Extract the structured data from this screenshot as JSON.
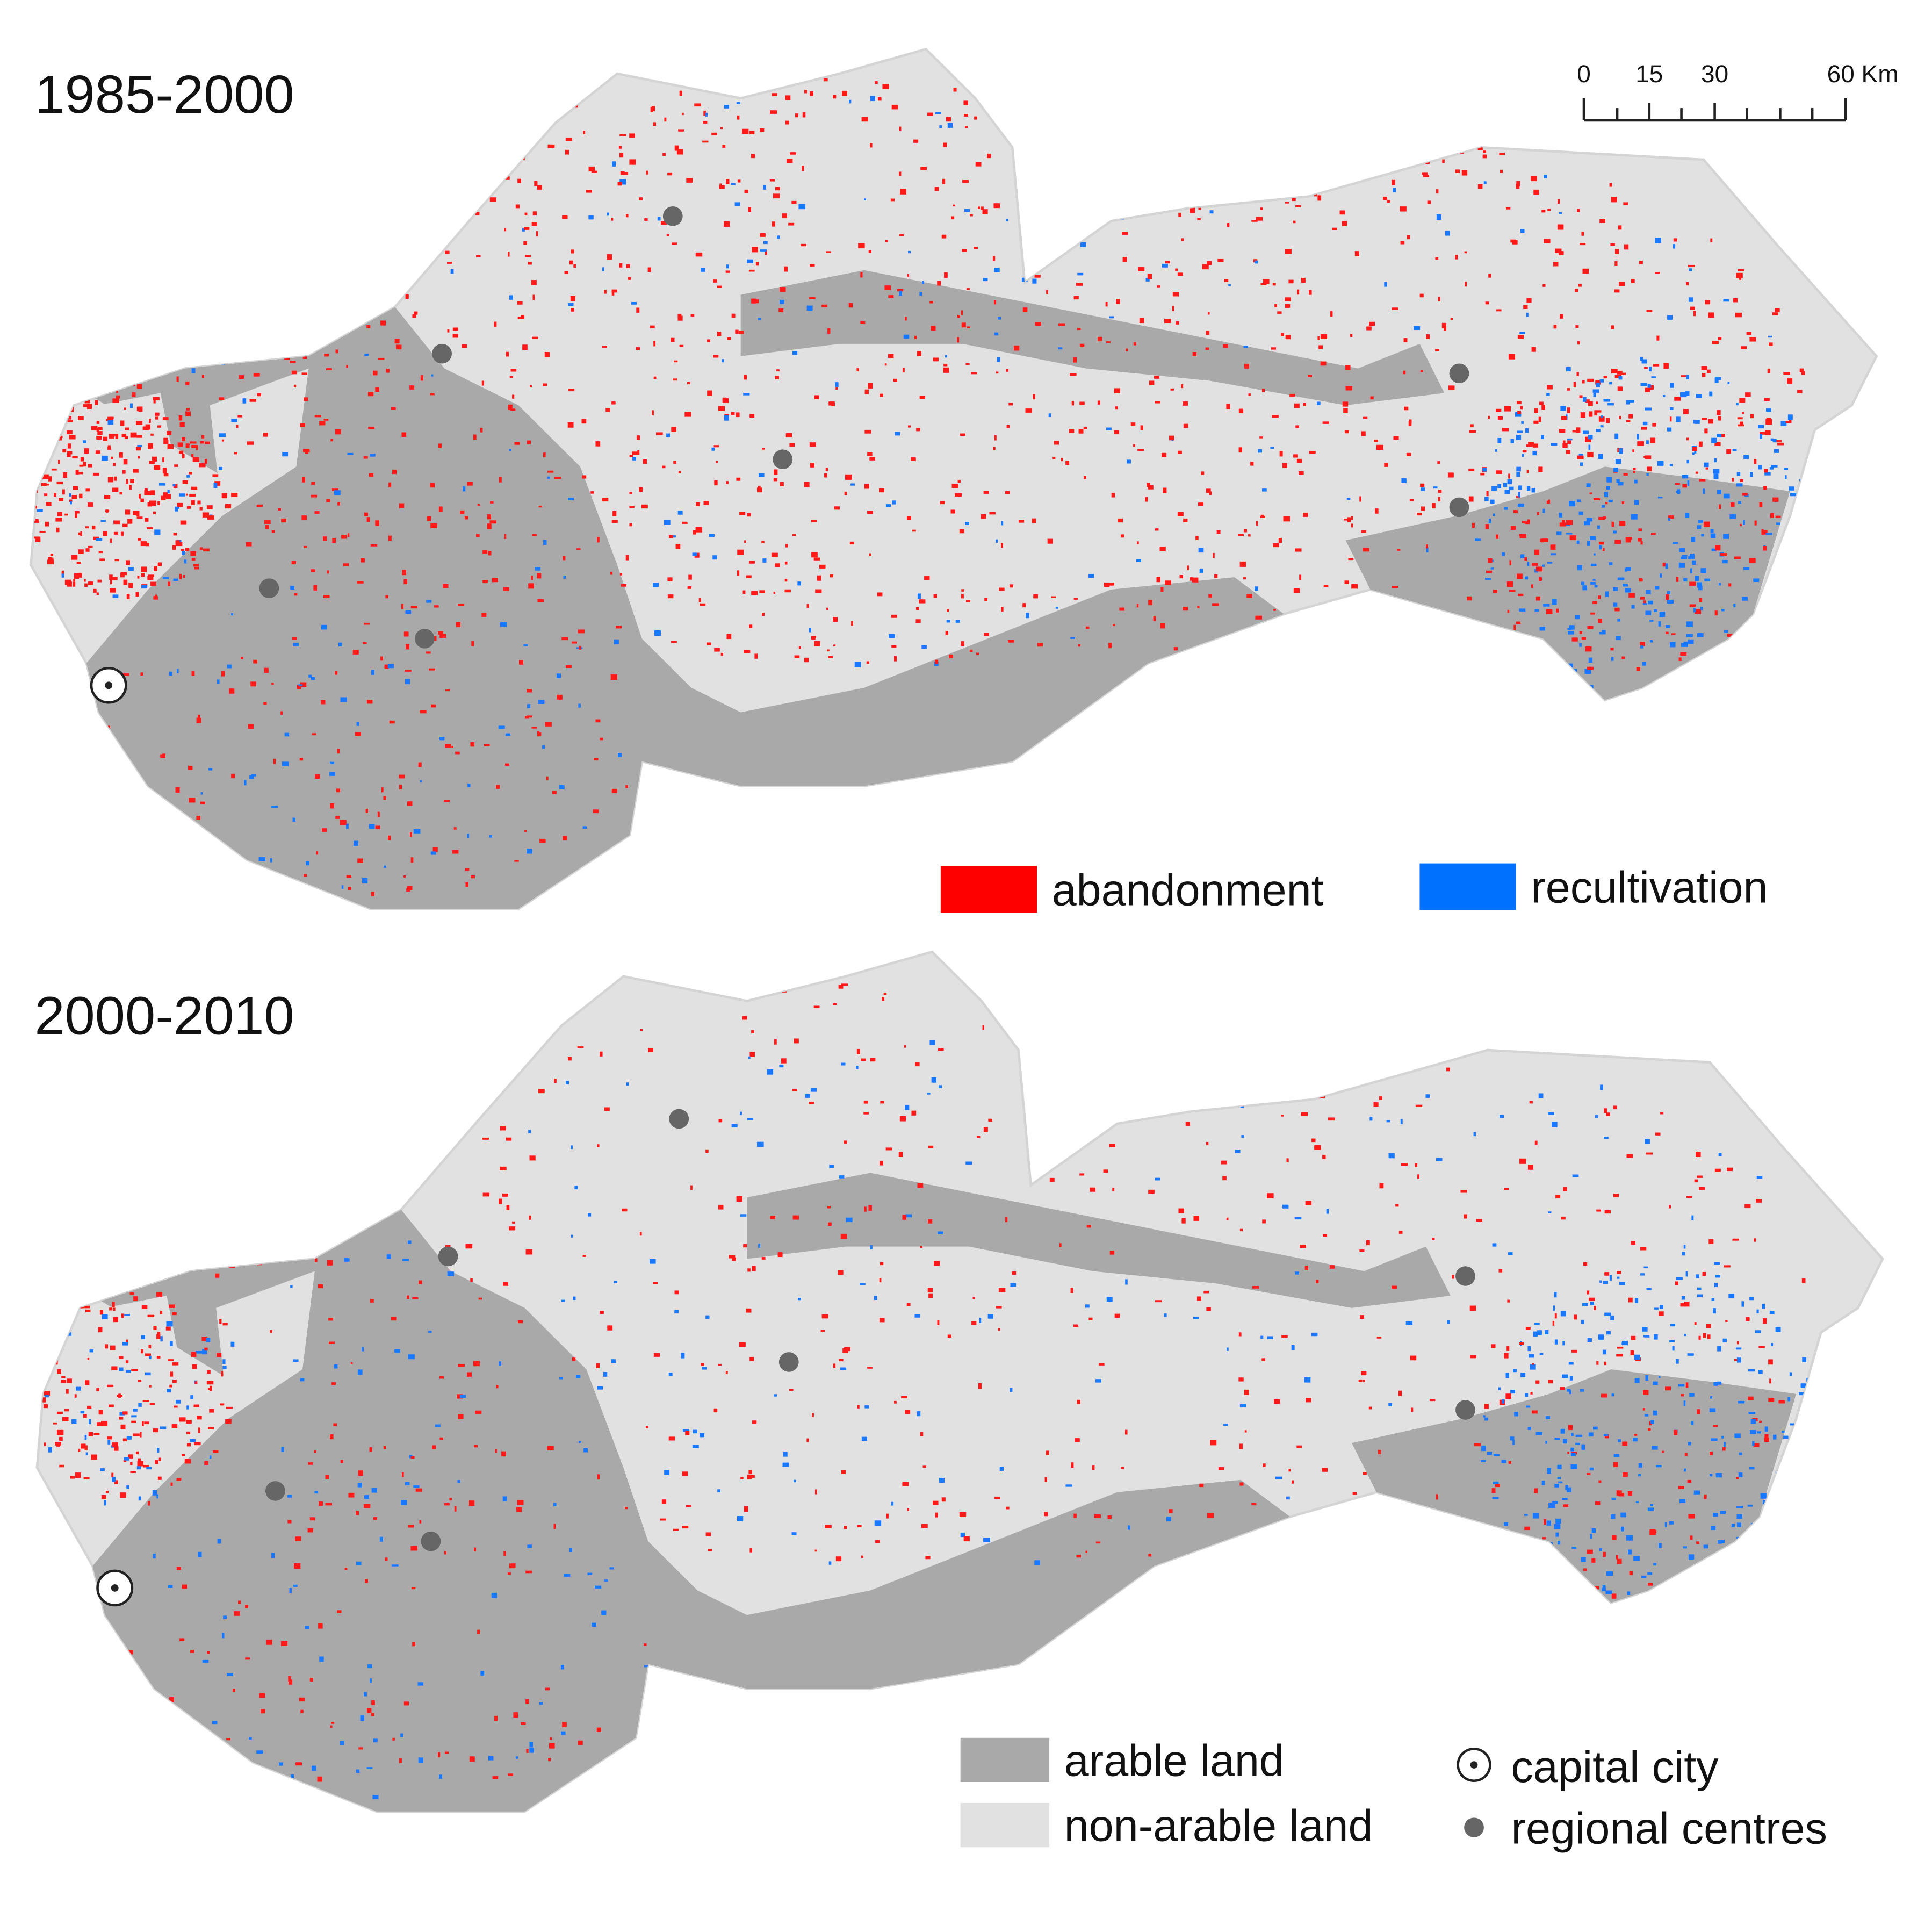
{
  "panels": [
    {
      "title": "1985-2000"
    },
    {
      "title": "2000-2010"
    }
  ],
  "scale_bar": {
    "labels": [
      "0",
      "15",
      "30",
      "60 Km"
    ]
  },
  "legend": {
    "change": [
      "abandonment",
      "recultivation"
    ],
    "land": [
      "arable land",
      "non-arable land"
    ],
    "places": [
      "capital city",
      "regional centres"
    ]
  }
}
